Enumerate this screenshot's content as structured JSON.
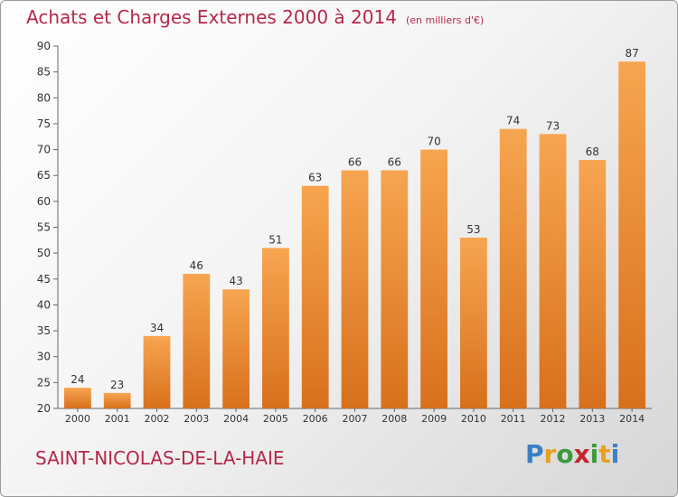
{
  "brand": {
    "letters": [
      "P",
      "r",
      "o",
      "x",
      "i",
      "t",
      "i"
    ],
    "colors": [
      "#3c7fc4",
      "#e8a020",
      "#3c9a3c",
      "#c0282d",
      "#3c9a3c",
      "#e8a020",
      "#3c7fc4"
    ]
  },
  "location": "SAINT-NICOLAS-DE-LA-HAIE",
  "chart_data": {
    "type": "bar",
    "title": "Achats et Charges Externes 2000 à 2014",
    "subtitle": "(en milliers d'€)",
    "categories": [
      "2000",
      "2001",
      "2002",
      "2003",
      "2004",
      "2005",
      "2006",
      "2007",
      "2008",
      "2009",
      "2010",
      "2011",
      "2012",
      "2013",
      "2014"
    ],
    "values": [
      24,
      23,
      34,
      46,
      43,
      51,
      63,
      66,
      66,
      70,
      53,
      74,
      73,
      68,
      87
    ],
    "ylim": [
      20,
      90
    ],
    "yticks": [
      20,
      25,
      30,
      35,
      40,
      45,
      50,
      55,
      60,
      65,
      70,
      75,
      80,
      85,
      90
    ],
    "grid": false,
    "bar_color": "#e8832a"
  }
}
